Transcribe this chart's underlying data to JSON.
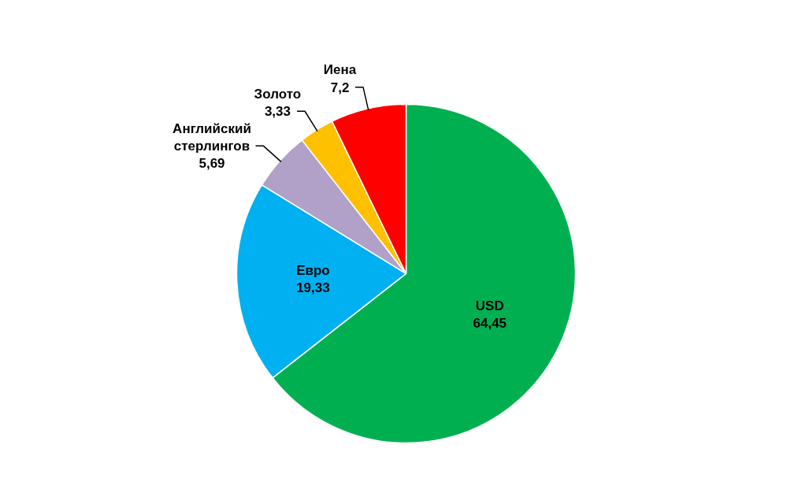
{
  "chart_data": {
    "type": "pie",
    "categories": [
      "USD",
      "Евро",
      "Английский стерлингов",
      "Золото",
      "Иена"
    ],
    "values": [
      64.45,
      19.33,
      5.69,
      3.33,
      7.2
    ],
    "colors": [
      "#00b050",
      "#00b0f0",
      "#b1a0c7",
      "#ffc000",
      "#ff0000"
    ],
    "value_labels": [
      "64,45",
      "19,33",
      "5,69",
      "3,33",
      "7,2"
    ]
  }
}
